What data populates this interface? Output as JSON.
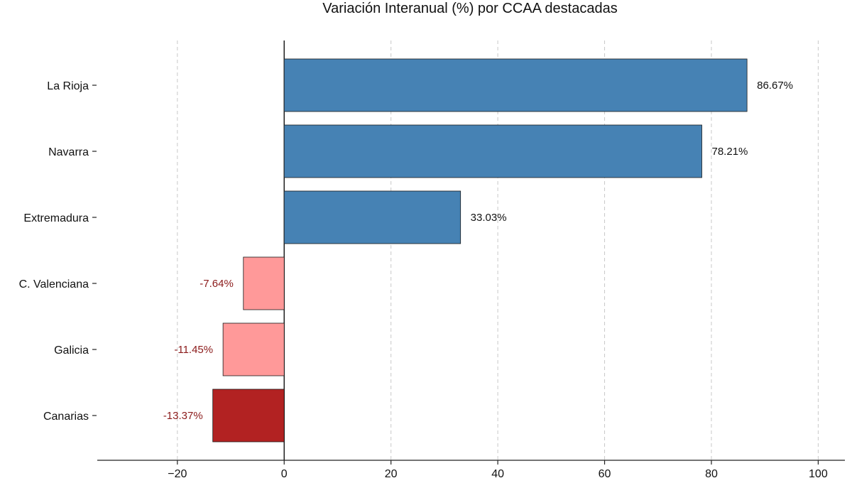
{
  "chart_data": {
    "type": "bar",
    "orientation": "horizontal",
    "title": "Variación Interanual (%) por CCAA destacadas",
    "xlabel": "",
    "ylabel": "",
    "categories": [
      "La Rioja",
      "Navarra",
      "Extremadura",
      "C. Valenciana",
      "Galicia",
      "Canarias"
    ],
    "values": [
      86.67,
      78.21,
      33.03,
      -7.64,
      -11.45,
      -13.37
    ],
    "data_labels": [
      "86.67%",
      "78.21%",
      "33.03%",
      "-7.64%",
      "-11.45%",
      "-13.37%"
    ],
    "bar_colors": [
      "#4682b4",
      "#4682b4",
      "#4682b4",
      "#ff9999",
      "#ff9999",
      "#b22222"
    ],
    "positive_label_color": "#111111",
    "negative_label_color": "#8b1a1a",
    "xlim": [
      -35,
      105
    ],
    "x_ticks": [
      -20,
      0,
      20,
      40,
      60,
      80,
      100
    ],
    "x_tick_labels": [
      "−20",
      "0",
      "20",
      "40",
      "60",
      "80",
      "100"
    ],
    "grid": "x, dashed",
    "legend": "none"
  }
}
